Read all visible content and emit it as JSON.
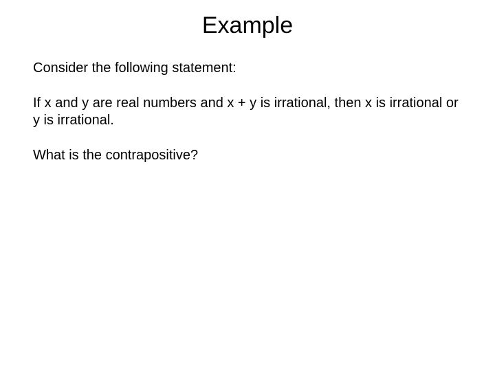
{
  "slide": {
    "title": "Example",
    "paragraphs": [
      "Consider the following statement:",
      "If x and y are real numbers and x + y is irrational, then x is irrational or y is irrational.",
      "What is the contrapositive?"
    ],
    "title_fontsize": 34,
    "body_fontsize": 20,
    "font_family": "Comic Sans MS",
    "background_color": "#ffffff",
    "text_color": "#000000"
  }
}
